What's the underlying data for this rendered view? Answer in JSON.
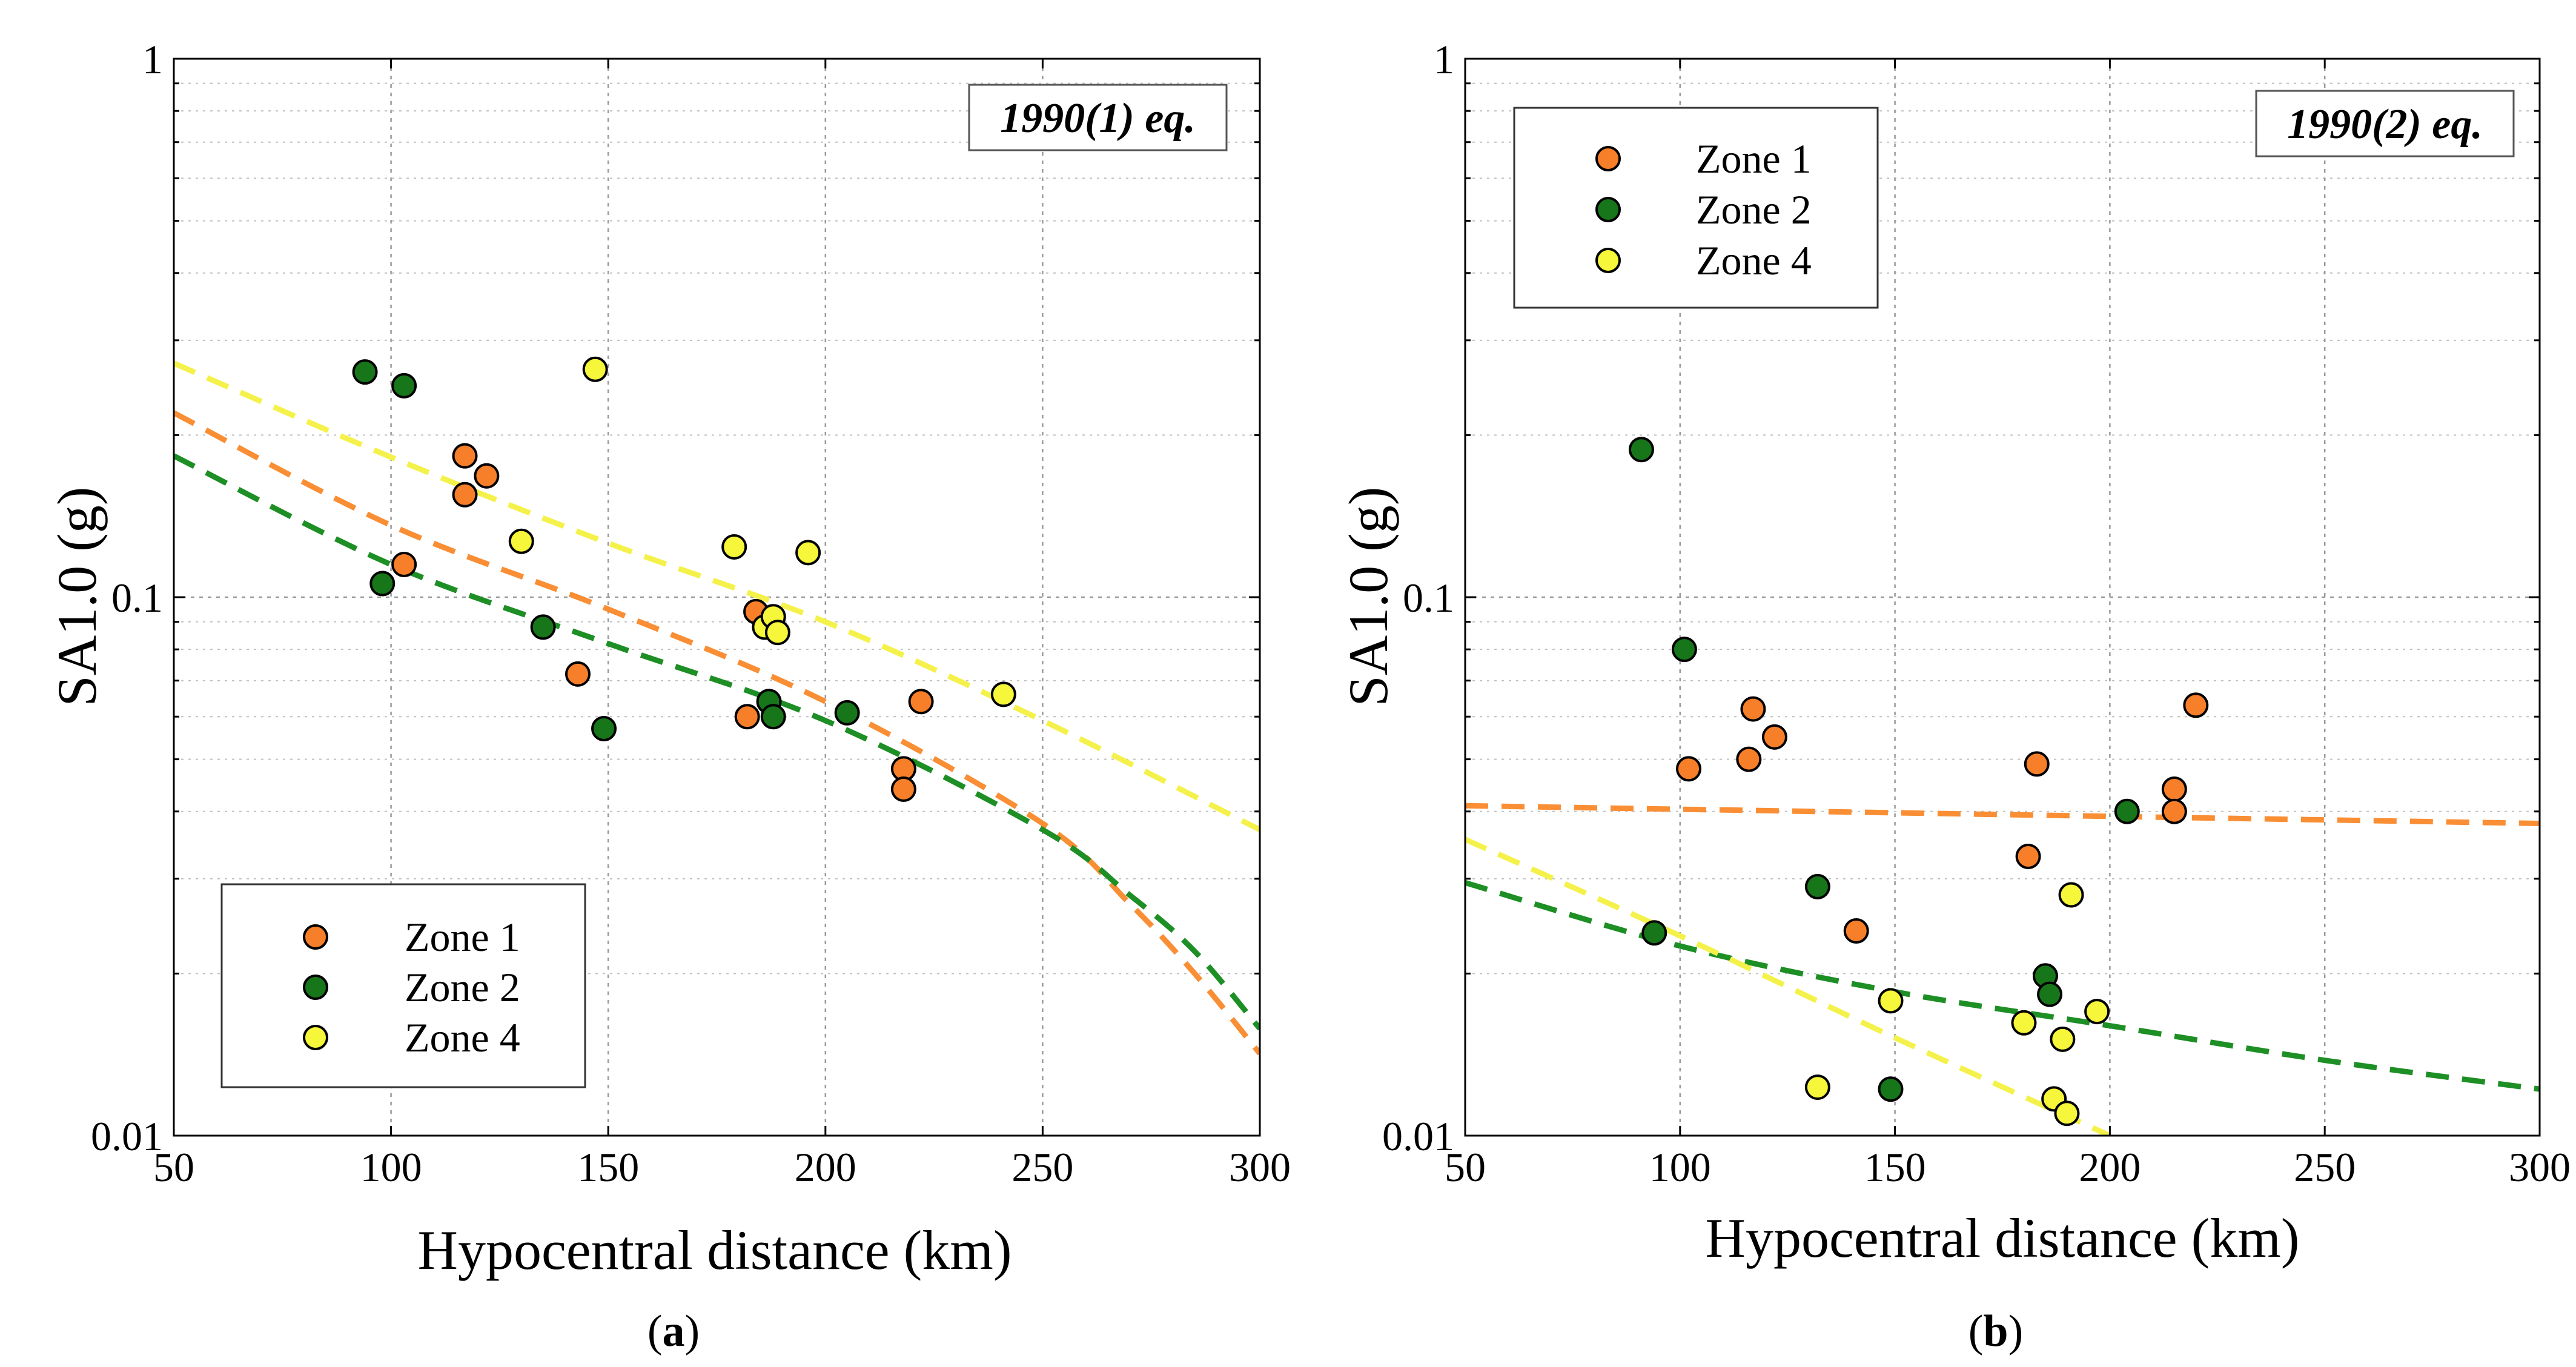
{
  "zone_colors": {
    "Zone 1": "#f77f2a",
    "Zone 2": "#17751a",
    "Zone 4": "#f6f63a"
  },
  "curve_colors": {
    "Zone 1": "#f98e34",
    "Zone 2": "#1d8f25",
    "Zone 4": "#f4f24a"
  },
  "chart_data": [
    {
      "id": "a",
      "type": "scatter",
      "caption_letter": "a",
      "annotation": "1990(1) eq.",
      "xlabel": "Hypocentral distance (km)",
      "ylabel": "SA1.0 (g)",
      "xlim": [
        50,
        300
      ],
      "ylim": [
        0.01,
        1
      ],
      "yscale": "log",
      "x_ticks": [
        "50",
        "100",
        "150",
        "200",
        "250",
        "300"
      ],
      "y_ticks": [
        "0.01",
        "0.1",
        "1"
      ],
      "legend_position": "bottom-left",
      "legend": [
        "Zone 1",
        "Zone 2",
        "Zone 4"
      ],
      "series": [
        {
          "name": "Zone 1",
          "points": [
            [
              103,
              0.115
            ],
            [
              117,
              0.183
            ],
            [
              117,
              0.155
            ],
            [
              122,
              0.168
            ],
            [
              143,
              0.072
            ],
            [
              182,
              0.06
            ],
            [
              184,
              0.094
            ],
            [
              218,
              0.048
            ],
            [
              218,
              0.044
            ],
            [
              222,
              0.064
            ]
          ]
        },
        {
          "name": "Zone 2",
          "points": [
            [
              94,
              0.262
            ],
            [
              98,
              0.106
            ],
            [
              103,
              0.247
            ],
            [
              135,
              0.088
            ],
            [
              149,
              0.057
            ],
            [
              187,
              0.064
            ],
            [
              188,
              0.06
            ],
            [
              205,
              0.061
            ]
          ]
        },
        {
          "name": "Zone 4",
          "points": [
            [
              130,
              0.127
            ],
            [
              147,
              0.265
            ],
            [
              179,
              0.124
            ],
            [
              186,
              0.088
            ],
            [
              188,
              0.092
            ],
            [
              189,
              0.086
            ],
            [
              196,
              0.121
            ],
            [
              241,
              0.066
            ]
          ]
        }
      ],
      "fits": [
        {
          "name": "Zone 1",
          "points": [
            [
              50,
              0.22
            ],
            [
              100,
              0.136
            ],
            [
              150,
              0.095
            ],
            [
              200,
              0.064
            ],
            [
              250,
              0.038
            ],
            [
              270,
              0.027
            ],
            [
              285,
              0.02
            ],
            [
              300,
              0.0142
            ]
          ]
        },
        {
          "name": "Zone 2",
          "points": [
            [
              50,
              0.183
            ],
            [
              100,
              0.115
            ],
            [
              150,
              0.082
            ],
            [
              200,
              0.059
            ],
            [
              250,
              0.037
            ],
            [
              270,
              0.028
            ],
            [
              285,
              0.022
            ],
            [
              300,
              0.0158
            ]
          ]
        },
        {
          "name": "Zone 4",
          "points": [
            [
              50,
              0.272
            ],
            [
              100,
              0.182
            ],
            [
              150,
              0.126
            ],
            [
              200,
              0.09
            ],
            [
              250,
              0.059
            ],
            [
              300,
              0.037
            ]
          ]
        }
      ]
    },
    {
      "id": "b",
      "type": "scatter",
      "caption_letter": "b",
      "annotation": "1990(2) eq.",
      "xlabel": "Hypocentral distance (km)",
      "ylabel": "SA1.0 (g)",
      "xlim": [
        50,
        300
      ],
      "ylim": [
        0.01,
        1
      ],
      "yscale": "log",
      "x_ticks": [
        "50",
        "100",
        "150",
        "200",
        "250",
        "300"
      ],
      "y_ticks": [
        "0.01",
        "0.1",
        "1"
      ],
      "legend_position": "top-left",
      "legend": [
        "Zone 1",
        "Zone 2",
        "Zone 4"
      ],
      "series": [
        {
          "name": "Zone 1",
          "points": [
            [
              102,
              0.048
            ],
            [
              116,
              0.05
            ],
            [
              117,
              0.062
            ],
            [
              122,
              0.055
            ],
            [
              141,
              0.024
            ],
            [
              181,
              0.033
            ],
            [
              183,
              0.049
            ],
            [
              215,
              0.044
            ],
            [
              215,
              0.04
            ],
            [
              220,
              0.063
            ]
          ]
        },
        {
          "name": "Zone 2",
          "points": [
            [
              91,
              0.188
            ],
            [
              94,
              0.0238
            ],
            [
              101,
              0.08
            ],
            [
              132,
              0.029
            ],
            [
              149,
              0.0122
            ],
            [
              185,
              0.0198
            ],
            [
              186,
              0.0183
            ],
            [
              204,
              0.04
            ]
          ]
        },
        {
          "name": "Zone 4",
          "points": [
            [
              132,
              0.0123
            ],
            [
              149,
              0.0178
            ],
            [
              180,
              0.0162
            ],
            [
              187,
              0.0117
            ],
            [
              189,
              0.0151
            ],
            [
              190,
              0.011
            ],
            [
              191,
              0.028
            ],
            [
              197,
              0.017
            ]
          ]
        }
      ],
      "fits": [
        {
          "name": "Zone 1",
          "points": [
            [
              50,
              0.041
            ],
            [
              300,
              0.038
            ]
          ]
        },
        {
          "name": "Zone 2",
          "points": [
            [
              50,
              0.0295
            ],
            [
              100,
              0.0225
            ],
            [
              150,
              0.0185
            ],
            [
              200,
              0.016
            ],
            [
              250,
              0.0138
            ],
            [
              300,
              0.0122
            ]
          ]
        },
        {
          "name": "Zone 4",
          "points": [
            [
              50,
              0.0355
            ],
            [
              100,
              0.0235
            ],
            [
              150,
              0.0152
            ],
            [
              200,
              0.01
            ]
          ]
        }
      ]
    }
  ]
}
